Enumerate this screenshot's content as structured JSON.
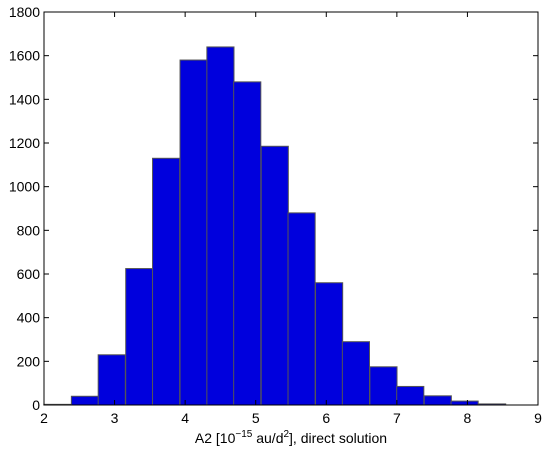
{
  "chart_data": {
    "type": "bar",
    "title": "",
    "xlabel_parts": {
      "prefix": "A2 [10",
      "exponent": "−15",
      "middle": " au/d",
      "square": "2",
      "suffix": "], direct solution"
    },
    "ylabel": "",
    "xlim": [
      2,
      9
    ],
    "ylim": [
      0,
      1800
    ],
    "xticks": [
      2,
      3,
      4,
      5,
      6,
      7,
      8,
      9
    ],
    "yticks": [
      0,
      200,
      400,
      600,
      800,
      1000,
      1200,
      1400,
      1600,
      1800
    ],
    "bin_width": 0.3846,
    "bin_centers": [
      2.19,
      2.58,
      2.96,
      3.35,
      3.73,
      4.12,
      4.5,
      4.88,
      5.27,
      5.65,
      6.04,
      6.42,
      6.81,
      7.19,
      7.58,
      7.96,
      8.35
    ],
    "values": [
      3,
      40,
      230,
      625,
      1130,
      1580,
      1640,
      1480,
      1185,
      880,
      560,
      290,
      175,
      85,
      42,
      18,
      5
    ],
    "bar_color": "#0000dd",
    "bar_edge_color": "#555555",
    "grid": false,
    "box": true
  }
}
